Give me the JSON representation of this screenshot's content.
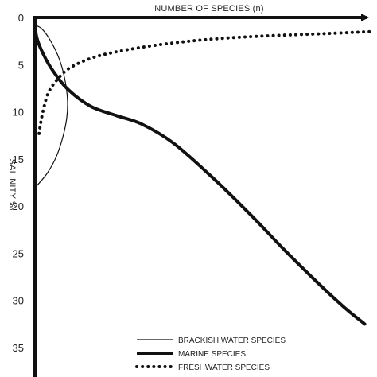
{
  "chart_data": {
    "type": "line",
    "xlabel": "NUMBER OF SPECIES (n)",
    "ylabel": "SALINITY ‰",
    "y_axis": {
      "range": [
        0,
        35
      ],
      "inverted": true,
      "ticks": [
        0,
        5,
        10,
        15,
        20,
        25,
        30,
        35
      ],
      "tick_labels": [
        "0",
        "5",
        "10",
        "15",
        "20",
        "25",
        "30",
        "35"
      ]
    },
    "x_axis": {
      "range": [
        0,
        100
      ],
      "ticks_shown": false,
      "note": "x values are relative species counts (unlabeled axis)"
    },
    "grid": false,
    "legend_position": "bottom-right",
    "series": [
      {
        "name": "BRACKISH WATER SPECIES",
        "style": "thin-solid",
        "color": "#111111",
        "points": [
          [
            0,
            0.8
          ],
          [
            2.0,
            1.2
          ],
          [
            4.6,
            2.5
          ],
          [
            7.1,
            4.4
          ],
          [
            8.7,
            6.5
          ],
          [
            9.5,
            8.7
          ],
          [
            9.3,
            10.6
          ],
          [
            8.2,
            12.6
          ],
          [
            6.3,
            14.7
          ],
          [
            3.6,
            16.5
          ],
          [
            0.4,
            17.9
          ]
        ]
      },
      {
        "name": "MARINE SPECIES",
        "style": "thick-solid",
        "color": "#111111",
        "points": [
          [
            0,
            0.8
          ],
          [
            0.5,
            2.1
          ],
          [
            1.8,
            3.4
          ],
          [
            4.6,
            5.3
          ],
          [
            9.3,
            7.5
          ],
          [
            16.2,
            9.4
          ],
          [
            23.8,
            10.4
          ],
          [
            31.2,
            11.3
          ],
          [
            40.4,
            13.3
          ],
          [
            51.7,
            16.9
          ],
          [
            63.0,
            20.9
          ],
          [
            72.8,
            24.6
          ],
          [
            82.3,
            28.0
          ],
          [
            90.0,
            30.6
          ],
          [
            96.4,
            32.5
          ]
        ]
      },
      {
        "name": "FRESHWATER SPECIES",
        "style": "dotted",
        "color": "#111111",
        "points": [
          [
            1.2,
            12.3
          ],
          [
            1.8,
            10.9
          ],
          [
            2.7,
            9.4
          ],
          [
            4.0,
            7.9
          ],
          [
            6.7,
            6.5
          ],
          [
            10.4,
            5.3
          ],
          [
            17.4,
            4.2
          ],
          [
            27.3,
            3.4
          ],
          [
            40.4,
            2.7
          ],
          [
            55.1,
            2.2
          ],
          [
            71.0,
            1.9
          ],
          [
            85.6,
            1.7
          ],
          [
            97.9,
            1.5
          ]
        ]
      }
    ]
  }
}
